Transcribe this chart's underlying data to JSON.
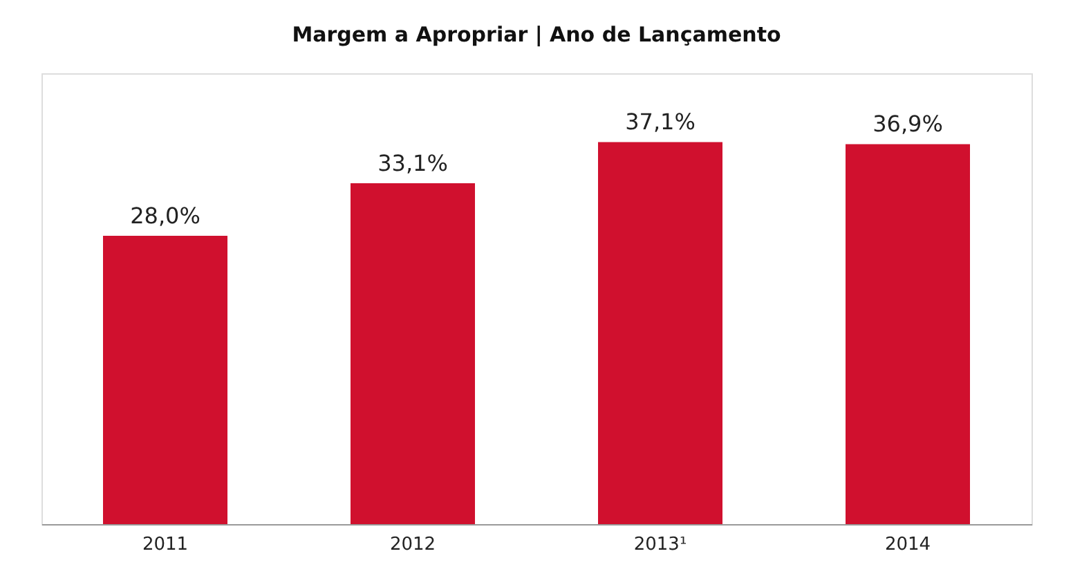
{
  "chart_data": {
    "type": "bar",
    "title": "Margem a Apropriar | Ano de Lançamento",
    "categories": [
      "2011",
      "2012",
      "2013¹",
      "2014"
    ],
    "values": [
      28.0,
      33.1,
      37.1,
      36.9
    ],
    "value_labels": [
      "28,0%",
      "33,1%",
      "37,1%",
      "36,9%"
    ],
    "color": "#d0102e"
  }
}
